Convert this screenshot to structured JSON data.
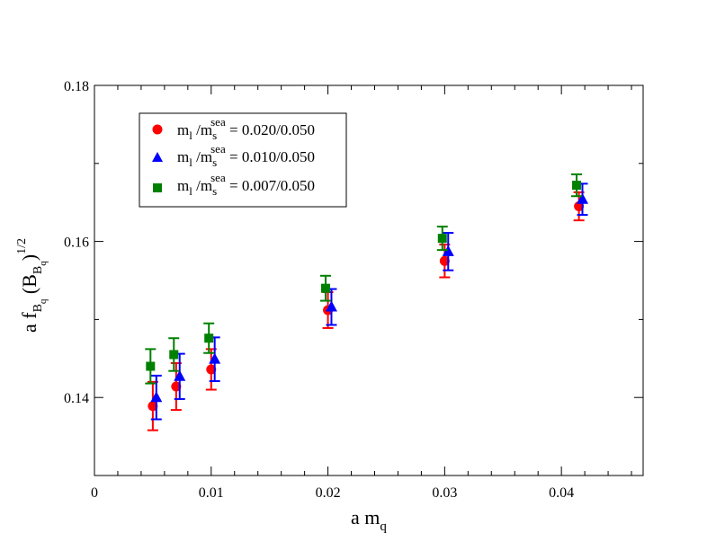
{
  "chart_data": {
    "type": "scatter",
    "title": "",
    "xlabel": {
      "main": "a m",
      "sub": "q"
    },
    "ylabel": {
      "a": "a f",
      "fsub1": "B",
      "fsub2": "q",
      "paren_open": " (B",
      "bsub1": "B",
      "bsub2": "q",
      "paren_close": ")",
      "power": "1/2"
    },
    "xlim": [
      0,
      0.047
    ],
    "ylim": [
      0.13,
      0.18
    ],
    "xticks": [
      0,
      0.01,
      0.02,
      0.03,
      0.04
    ],
    "xtick_labels": [
      "0",
      "0.01",
      "0.02",
      "0.03",
      "0.04"
    ],
    "yticks": [
      0.14,
      0.16,
      0.18
    ],
    "ytick_labels": [
      "0.14",
      "0.16",
      "0.18"
    ],
    "grid": false,
    "legend_position": "top-left",
    "series": [
      {
        "name": "m_l/m_s^sea = 0.020/0.050",
        "legend": {
          "m": "m",
          "lsub": "l",
          "slash": " /m",
          "ssub": "s",
          "sup": "sea",
          "value": " = 0.020/0.050"
        },
        "color": "#ff0000",
        "marker": "circle",
        "points": [
          {
            "x": 0.005,
            "y": 0.1389,
            "err": 0.0031
          },
          {
            "x": 0.007,
            "y": 0.1414,
            "err": 0.003
          },
          {
            "x": 0.01,
            "y": 0.1436,
            "err": 0.0026
          },
          {
            "x": 0.02,
            "y": 0.1512,
            "err": 0.0023
          },
          {
            "x": 0.03,
            "y": 0.1575,
            "err": 0.0021
          },
          {
            "x": 0.0415,
            "y": 0.1645,
            "err": 0.0018
          }
        ]
      },
      {
        "name": "m_l/m_s^sea = 0.010/0.050",
        "legend": {
          "m": "m",
          "lsub": "l",
          "slash": " /m",
          "ssub": "s",
          "sup": "sea",
          "value": " = 0.010/0.050"
        },
        "color": "#0000ff",
        "marker": "triangle",
        "points": [
          {
            "x": 0.0053,
            "y": 0.14,
            "err": 0.0028
          },
          {
            "x": 0.0073,
            "y": 0.1427,
            "err": 0.0029
          },
          {
            "x": 0.0103,
            "y": 0.1449,
            "err": 0.0028
          },
          {
            "x": 0.0203,
            "y": 0.1516,
            "err": 0.0023
          },
          {
            "x": 0.0303,
            "y": 0.1587,
            "err": 0.0024
          },
          {
            "x": 0.0418,
            "y": 0.1654,
            "err": 0.002
          }
        ]
      },
      {
        "name": "m_l/m_s^sea = 0.007/0.050",
        "legend": {
          "m": "m",
          "lsub": "l",
          "slash": " /m",
          "ssub": "s",
          "sup": "sea",
          "value": " = 0.007/0.050"
        },
        "color": "#008000",
        "marker": "square",
        "points": [
          {
            "x": 0.0048,
            "y": 0.144,
            "err": 0.0022
          },
          {
            "x": 0.0068,
            "y": 0.1455,
            "err": 0.0021
          },
          {
            "x": 0.0098,
            "y": 0.1476,
            "err": 0.0019
          },
          {
            "x": 0.0198,
            "y": 0.154,
            "err": 0.0016
          },
          {
            "x": 0.0298,
            "y": 0.1604,
            "err": 0.0015
          },
          {
            "x": 0.0413,
            "y": 0.1672,
            "err": 0.0014
          }
        ]
      }
    ]
  }
}
